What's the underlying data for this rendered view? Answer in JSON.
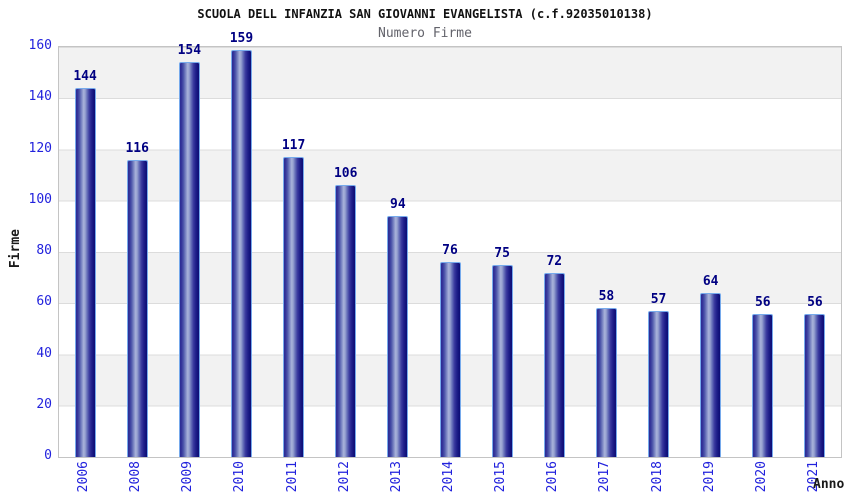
{
  "header": {
    "title": "SCUOLA DELL INFANZIA SAN GIOVANNI EVANGELISTA (c.f.92035010138)",
    "subtitle": "Numero Firme"
  },
  "chart_data": {
    "type": "bar",
    "title": "Numero Firme",
    "categories": [
      "2006",
      "2008",
      "2009",
      "2010",
      "2011",
      "2012",
      "2013",
      "2014",
      "2015",
      "2016",
      "2017",
      "2018",
      "2019",
      "2020",
      "2021"
    ],
    "values": [
      144,
      116,
      154,
      159,
      117,
      106,
      94,
      76,
      75,
      72,
      58,
      57,
      64,
      56,
      56
    ],
    "xlabel": "Anno",
    "ylabel": "Firme",
    "ylim": [
      0,
      160
    ],
    "yticks": [
      0,
      20,
      40,
      60,
      80,
      100,
      120,
      140,
      160
    ],
    "grid": "horizontal-bands-every-20",
    "legend": "none",
    "colors": {
      "bar_edge_highlight": "#76aaec",
      "bar_dark": "#14147e",
      "bar_light": "#a9b3da",
      "axis_tick_text": "#2222dd",
      "value_label_text": "#000082",
      "band_gray": "#f2f2f2",
      "band_white": "#ffffff",
      "plot_border": "#c4c4c4",
      "title_text": "#111111",
      "subtitle_text": "#63636b"
    }
  }
}
